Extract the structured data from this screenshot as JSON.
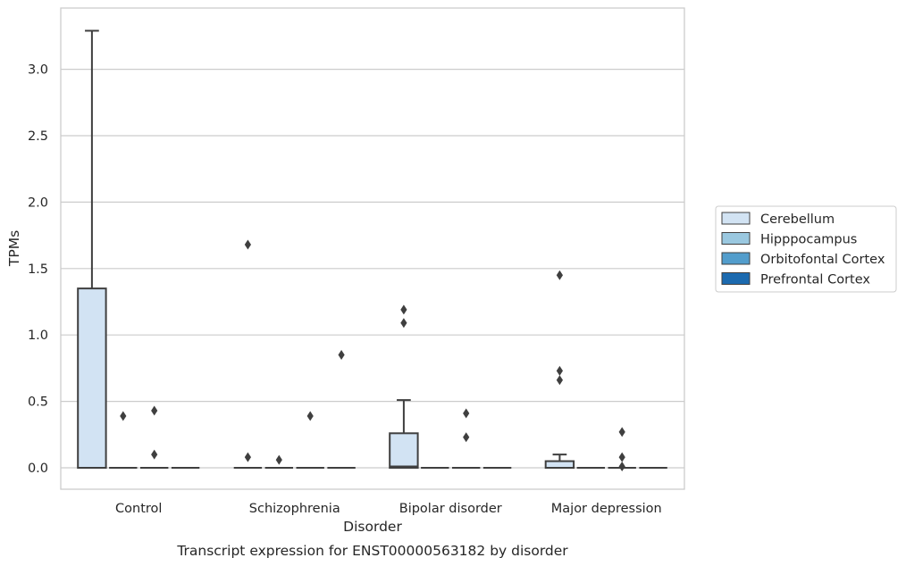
{
  "chart_data": {
    "type": "box",
    "caption": "Transcript expression for ENST00000563182 by disorder",
    "xlabel": "Disorder",
    "ylabel": "TPMs",
    "ylim": [
      -0.16,
      3.48
    ],
    "yticks": [
      0.0,
      0.5,
      1.0,
      1.5,
      2.0,
      2.5,
      3.0
    ],
    "ytick_labels": [
      "0.0",
      "0.5",
      "1.0",
      "1.5",
      "2.0",
      "2.5",
      "3.0"
    ],
    "grid": "horizontal",
    "legend_position": "right",
    "categories": [
      "Control",
      "Schizophrenia",
      "Bipolar disorder",
      "Major depression"
    ],
    "series": [
      {
        "name": "Cerebellum",
        "color": "#d2e3f3",
        "boxes": [
          {
            "q1": 0.0,
            "median": 0.0,
            "q3": 1.35,
            "whisker_low": 0.0,
            "whisker_high": 3.29,
            "outliers": []
          },
          {
            "q1": 0.0,
            "median": 0.0,
            "q3": 0.0,
            "whisker_low": 0.0,
            "whisker_high": 0.0,
            "outliers": [
              1.68,
              0.08
            ]
          },
          {
            "q1": 0.0,
            "median": 0.01,
            "q3": 0.26,
            "whisker_low": 0.0,
            "whisker_high": 0.51,
            "outliers": [
              1.19,
              1.09
            ]
          },
          {
            "q1": 0.0,
            "median": 0.0,
            "q3": 0.05,
            "whisker_low": 0.0,
            "whisker_high": 0.1,
            "outliers": [
              1.45,
              0.73,
              0.66
            ]
          }
        ]
      },
      {
        "name": "Hipppocampus",
        "color": "#9ac8e0",
        "boxes": [
          {
            "q1": 0.0,
            "median": 0.0,
            "q3": 0.0,
            "whisker_low": 0.0,
            "whisker_high": 0.0,
            "outliers": [
              0.39
            ]
          },
          {
            "q1": 0.0,
            "median": 0.0,
            "q3": 0.0,
            "whisker_low": 0.0,
            "whisker_high": 0.0,
            "outliers": [
              0.06
            ]
          },
          {
            "q1": 0.0,
            "median": 0.0,
            "q3": 0.0,
            "whisker_low": 0.0,
            "whisker_high": 0.0,
            "outliers": []
          },
          {
            "q1": 0.0,
            "median": 0.0,
            "q3": 0.0,
            "whisker_low": 0.0,
            "whisker_high": 0.0,
            "outliers": []
          }
        ]
      },
      {
        "name": "Orbitofontal Cortex",
        "color": "#529dcc",
        "boxes": [
          {
            "q1": 0.0,
            "median": 0.0,
            "q3": 0.0,
            "whisker_low": 0.0,
            "whisker_high": 0.0,
            "outliers": [
              0.43,
              0.1
            ]
          },
          {
            "q1": 0.0,
            "median": 0.0,
            "q3": 0.0,
            "whisker_low": 0.0,
            "whisker_high": 0.0,
            "outliers": [
              0.39
            ]
          },
          {
            "q1": 0.0,
            "median": 0.0,
            "q3": 0.0,
            "whisker_low": 0.0,
            "whisker_high": 0.0,
            "outliers": [
              0.41,
              0.23
            ]
          },
          {
            "q1": 0.0,
            "median": 0.0,
            "q3": 0.0,
            "whisker_low": 0.0,
            "whisker_high": 0.0,
            "outliers": [
              0.27,
              0.08,
              0.01
            ]
          }
        ]
      },
      {
        "name": "Prefrontal Cortex",
        "color": "#1c6aaf",
        "boxes": [
          {
            "q1": 0.0,
            "median": 0.0,
            "q3": 0.0,
            "whisker_low": 0.0,
            "whisker_high": 0.0,
            "outliers": []
          },
          {
            "q1": 0.0,
            "median": 0.0,
            "q3": 0.0,
            "whisker_low": 0.0,
            "whisker_high": 0.0,
            "outliers": [
              0.85
            ]
          },
          {
            "q1": 0.0,
            "median": 0.0,
            "q3": 0.0,
            "whisker_low": 0.0,
            "whisker_high": 0.0,
            "outliers": []
          },
          {
            "q1": 0.0,
            "median": 0.0,
            "q3": 0.0,
            "whisker_low": 0.0,
            "whisker_high": 0.0,
            "outliers": []
          }
        ]
      }
    ]
  }
}
